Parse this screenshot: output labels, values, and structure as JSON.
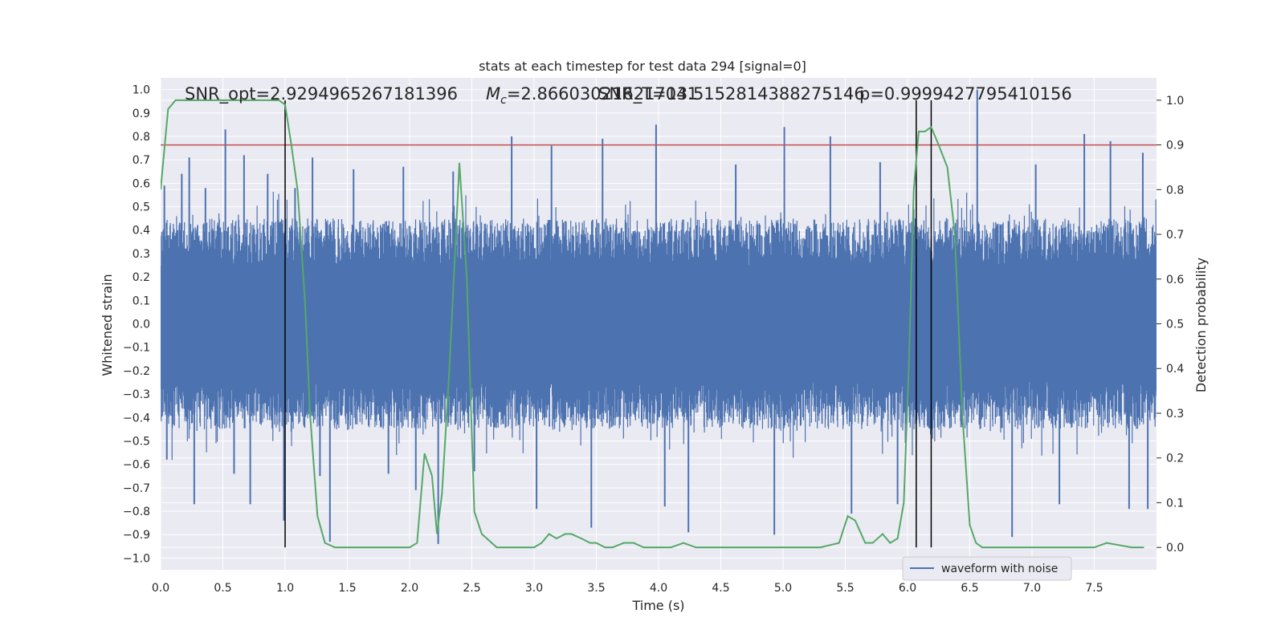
{
  "chart_data": {
    "type": "line",
    "title": "stats at each timestep for test data 294 [signal=0]",
    "xlabel": "Time (s)",
    "ylabel": "Whitened strain",
    "ylabel_right": "Detection probability",
    "xlim": [
      0.0,
      8.0
    ],
    "ylim": [
      -1.05,
      1.05
    ],
    "ylim_right": [
      -0.05,
      1.05
    ],
    "x_ticks": [
      "0.0",
      "0.5",
      "1.0",
      "1.5",
      "2.0",
      "2.5",
      "3.0",
      "3.5",
      "4.0",
      "4.5",
      "5.0",
      "5.5",
      "6.0",
      "6.5",
      "7.0",
      "7.5"
    ],
    "x_tick_values": [
      0,
      0.5,
      1,
      1.5,
      2,
      2.5,
      3,
      3.5,
      4,
      4.5,
      5,
      5.5,
      6,
      6.5,
      7,
      7.5
    ],
    "y_ticks": [
      "1.0",
      "0.9",
      "0.8",
      "0.7",
      "0.6",
      "0.5",
      "0.4",
      "0.3",
      "0.2",
      "0.1",
      "0.0",
      "−0.1",
      "−0.2",
      "−0.3",
      "−0.4",
      "−0.5",
      "−0.6",
      "−0.7",
      "−0.8",
      "−0.9",
      "−1.0"
    ],
    "y_tick_values": [
      1.0,
      0.9,
      0.8,
      0.7,
      0.6,
      0.5,
      0.4,
      0.3,
      0.2,
      0.1,
      0.0,
      -0.1,
      -0.2,
      -0.3,
      -0.4,
      -0.5,
      -0.6,
      -0.7,
      -0.8,
      -0.9,
      -1.0
    ],
    "y_ticks_right": [
      "1.0",
      "0.9",
      "0.8",
      "0.7",
      "0.6",
      "0.5",
      "0.4",
      "0.3",
      "0.2",
      "0.1",
      "0.0"
    ],
    "y_tick_values_right": [
      1.0,
      0.9,
      0.8,
      0.7,
      0.6,
      0.5,
      0.4,
      0.3,
      0.2,
      0.1,
      0.0
    ],
    "annotations": [
      "SNR_opt=2.9294965267181396",
      "M",
      "c",
      "=2.866030216217041",
      "SNR_T=13.5152814388275146",
      "p=0.9999427795410156"
    ],
    "legend": {
      "entries": [
        "waveform with noise"
      ],
      "placement": "lower-right"
    },
    "grid": true,
    "colors": {
      "background": "#eaeaf2",
      "grid": "#ffffff",
      "waveform": "#4c72b0",
      "probability": "#55a868",
      "threshold": "#c44e52",
      "vlines": "#000000"
    },
    "threshold_right": 0.9,
    "vlines_x": [
      1.0,
      6.07,
      6.19
    ],
    "series": [
      {
        "name": "waveform with noise",
        "kind": "waveform",
        "envelope_upper": 0.45,
        "envelope_lower": -0.45,
        "peaks": [
          {
            "x": 0.03,
            "y": 0.59
          },
          {
            "x": 0.05,
            "y": -0.58
          },
          {
            "x": 0.17,
            "y": 0.64
          },
          {
            "x": 0.23,
            "y": 0.71
          },
          {
            "x": 0.27,
            "y": -0.77
          },
          {
            "x": 0.36,
            "y": 0.58
          },
          {
            "x": 0.52,
            "y": 0.83
          },
          {
            "x": 0.59,
            "y": -0.64
          },
          {
            "x": 0.67,
            "y": 0.72
          },
          {
            "x": 0.72,
            "y": -0.77
          },
          {
            "x": 0.86,
            "y": 0.64
          },
          {
            "x": 0.99,
            "y": -0.84
          },
          {
            "x": 1.08,
            "y": 0.58
          },
          {
            "x": 1.22,
            "y": 0.71
          },
          {
            "x": 1.28,
            "y": -0.65
          },
          {
            "x": 1.36,
            "y": -0.93
          },
          {
            "x": 1.55,
            "y": 0.66
          },
          {
            "x": 1.83,
            "y": -0.64
          },
          {
            "x": 1.95,
            "y": 0.67
          },
          {
            "x": 2.05,
            "y": -0.71
          },
          {
            "x": 2.23,
            "y": -0.94
          },
          {
            "x": 2.35,
            "y": 0.65
          },
          {
            "x": 2.52,
            "y": -0.63
          },
          {
            "x": 2.82,
            "y": 0.8
          },
          {
            "x": 3.02,
            "y": -0.79
          },
          {
            "x": 3.14,
            "y": 0.76
          },
          {
            "x": 3.46,
            "y": -0.87
          },
          {
            "x": 3.55,
            "y": 0.79
          },
          {
            "x": 3.98,
            "y": 0.85
          },
          {
            "x": 4.05,
            "y": -0.78
          },
          {
            "x": 4.24,
            "y": -0.89
          },
          {
            "x": 4.62,
            "y": 0.68
          },
          {
            "x": 4.93,
            "y": -0.9
          },
          {
            "x": 5.01,
            "y": 0.84
          },
          {
            "x": 5.38,
            "y": 0.8
          },
          {
            "x": 5.55,
            "y": -0.81
          },
          {
            "x": 5.78,
            "y": 0.69
          },
          {
            "x": 5.92,
            "y": -0.77
          },
          {
            "x": 6.56,
            "y": 1.0
          },
          {
            "x": 6.84,
            "y": -0.91
          },
          {
            "x": 7.03,
            "y": 0.68
          },
          {
            "x": 7.22,
            "y": -0.77
          },
          {
            "x": 7.42,
            "y": 0.81
          },
          {
            "x": 7.63,
            "y": 0.78
          },
          {
            "x": 7.78,
            "y": -0.79
          },
          {
            "x": 7.89,
            "y": 0.73
          },
          {
            "x": 7.93,
            "y": -0.79
          }
        ]
      },
      {
        "name": "",
        "kind": "probability",
        "axis": "right",
        "x": [
          0.0,
          0.06,
          0.12,
          0.18,
          0.25,
          0.5,
          0.75,
          0.95,
          1.0,
          1.05,
          1.1,
          1.16,
          1.2,
          1.26,
          1.32,
          1.4,
          1.6,
          1.8,
          2.0,
          2.06,
          2.12,
          2.18,
          2.22,
          2.26,
          2.32,
          2.4,
          2.46,
          2.52,
          2.58,
          2.7,
          2.8,
          3.0,
          3.06,
          3.12,
          3.18,
          3.25,
          3.3,
          3.38,
          3.45,
          3.5,
          3.57,
          3.63,
          3.72,
          3.8,
          3.88,
          4.0,
          4.1,
          4.2,
          4.3,
          4.4,
          5.0,
          5.3,
          5.45,
          5.52,
          5.58,
          5.66,
          5.72,
          5.8,
          5.86,
          5.92,
          5.97,
          6.01,
          6.05,
          6.09,
          6.14,
          6.19,
          6.25,
          6.32,
          6.38,
          6.44,
          6.5,
          6.55,
          6.6,
          6.7,
          6.8,
          7.0,
          7.3,
          7.5,
          7.6,
          7.8,
          7.9
        ],
        "y": [
          0.8,
          0.98,
          1.0,
          1.0,
          1.0,
          1.0,
          1.0,
          1.0,
          0.99,
          0.9,
          0.8,
          0.55,
          0.3,
          0.07,
          0.01,
          0.0,
          0.0,
          0.0,
          0.0,
          0.01,
          0.21,
          0.16,
          0.03,
          0.12,
          0.4,
          0.86,
          0.6,
          0.08,
          0.03,
          0.0,
          0.0,
          0.0,
          0.01,
          0.03,
          0.02,
          0.03,
          0.03,
          0.02,
          0.01,
          0.01,
          0.0,
          0.0,
          0.01,
          0.01,
          0.0,
          0.0,
          0.0,
          0.01,
          0.0,
          0.0,
          0.0,
          0.0,
          0.01,
          0.07,
          0.06,
          0.01,
          0.01,
          0.03,
          0.01,
          0.02,
          0.1,
          0.4,
          0.8,
          0.93,
          0.93,
          0.94,
          0.9,
          0.85,
          0.7,
          0.3,
          0.05,
          0.01,
          0.0,
          0.0,
          0.0,
          0.0,
          0.0,
          0.0,
          0.01,
          0.0,
          0.0
        ]
      }
    ]
  }
}
